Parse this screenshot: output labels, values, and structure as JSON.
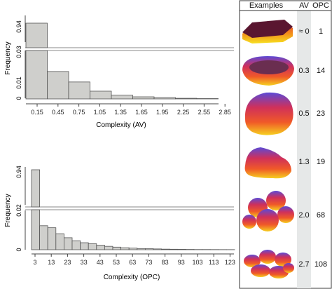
{
  "chart_data": [
    {
      "type": "bar",
      "xlabel": "Complexity (AV)",
      "ylabel": "Frequency",
      "tick_labels_x": [
        "0.15",
        "0.45",
        "0.75",
        "1.05",
        "1.35",
        "1.65",
        "1.95",
        "2.25",
        "2.55",
        "2.85"
      ],
      "bin_start": 0,
      "bin_width": 0.3,
      "values": [
        0.94,
        0.017,
        0.0105,
        0.0048,
        0.0023,
        0.0013,
        0.0008,
        0.0004,
        0.0002
      ],
      "broken_axis": true,
      "upper_yticks": [
        "0.94"
      ],
      "lower_yticks": [
        "0.03",
        "0.01",
        "0"
      ],
      "lower_ylim": [
        0,
        0.03
      ],
      "bar_color": "#cfcfcc"
    },
    {
      "type": "bar",
      "xlabel": "Complexity (OPC)",
      "ylabel": "Frequency",
      "tick_labels_x": [
        "3",
        "13",
        "23",
        "33",
        "43",
        "53",
        "63",
        "73",
        "83",
        "93",
        "103",
        "113",
        "123"
      ],
      "bin_start": 0,
      "bin_width": 5,
      "values": [
        0.94,
        0.012,
        0.011,
        0.008,
        0.006,
        0.0045,
        0.0035,
        0.003,
        0.0023,
        0.0017,
        0.0013,
        0.001,
        0.0008,
        0.0006,
        0.0005,
        0.0004,
        0.0003,
        0.00025,
        0.0002,
        0.00015,
        0.0001,
        0.0001,
        8e-05,
        6e-05,
        5e-05
      ],
      "broken_axis": true,
      "upper_yticks": [
        "0.94"
      ],
      "lower_yticks": [
        "0.02",
        "0"
      ],
      "lower_ylim": [
        0,
        0.02
      ],
      "bar_color": "#cfcfcc"
    }
  ],
  "table": {
    "headers": [
      "Examples",
      "AV",
      "OPC"
    ],
    "rows": [
      {
        "av": "≈ 0",
        "opc": "1",
        "shape": "flat-slab"
      },
      {
        "av": "0.3",
        "opc": "14",
        "shape": "cup"
      },
      {
        "av": "0.5",
        "opc": "23",
        "shape": "mound"
      },
      {
        "av": "1.3",
        "opc": "19",
        "shape": "finger"
      },
      {
        "av": "2.0",
        "opc": "68",
        "shape": "lumpy"
      },
      {
        "av": "2.7",
        "opc": "108",
        "shape": "pebbles"
      }
    ]
  }
}
